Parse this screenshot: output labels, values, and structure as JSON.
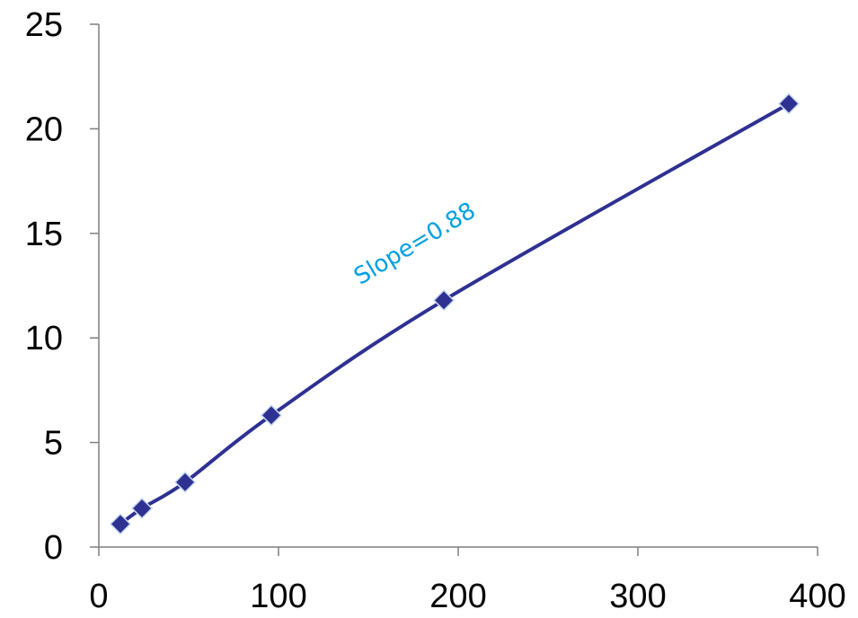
{
  "chart_data": {
    "type": "scatter",
    "title": "",
    "xlabel": "",
    "ylabel": "",
    "xlim": [
      0,
      400
    ],
    "ylim": [
      0,
      25
    ],
    "x_ticks": [
      0,
      100,
      200,
      300,
      400
    ],
    "y_ticks": [
      0,
      5,
      10,
      15,
      20,
      25
    ],
    "x_tick_labels": [
      "0",
      "100",
      "200",
      "300",
      "400"
    ],
    "y_tick_labels": [
      "0",
      "5",
      "10",
      "15",
      "20",
      "25"
    ],
    "grid": false,
    "legend": "none",
    "series": [
      {
        "x": [
          12,
          24,
          48,
          96,
          192,
          384
        ],
        "y": [
          1.1,
          1.85,
          3.1,
          6.3,
          11.8,
          21.2
        ],
        "color": "#2e3192",
        "marker": "diamond",
        "smooth": true
      }
    ],
    "annotations": [
      {
        "text": "Slope=0.88",
        "x": 178,
        "y": 14.2,
        "rotation": -31,
        "color": "#00a0e0"
      }
    ]
  }
}
